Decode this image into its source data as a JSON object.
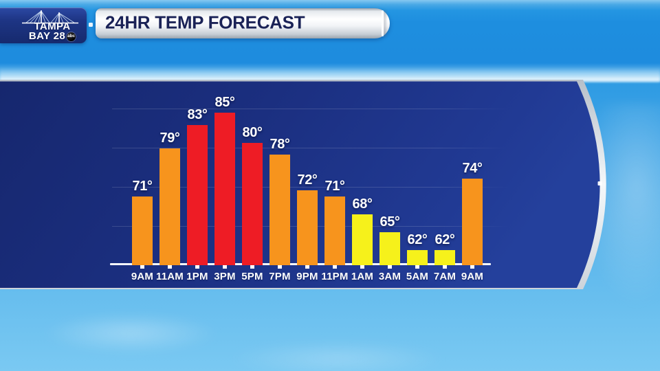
{
  "header": {
    "station": {
      "line1": "TAMPA",
      "line2": "BAY 28",
      "network_badge": "abc"
    },
    "title": "24HR TEMP FORECAST"
  },
  "chart_data": {
    "type": "bar",
    "title": "24HR TEMP FORECAST",
    "unit": "°F",
    "categories": [
      "9AM",
      "11AM",
      "1PM",
      "3PM",
      "5PM",
      "7PM",
      "9PM",
      "11PM",
      "1AM",
      "3AM",
      "5AM",
      "7AM",
      "9AM"
    ],
    "values": [
      71,
      79,
      83,
      85,
      80,
      78,
      72,
      71,
      68,
      65,
      62,
      62,
      74
    ],
    "value_suffix": "°",
    "bar_colors": [
      "orange",
      "orange",
      "red",
      "red",
      "red",
      "orange",
      "orange",
      "orange",
      "yellow",
      "yellow",
      "yellow",
      "yellow",
      "orange"
    ],
    "palette": {
      "red": "#EE1C25",
      "orange": "#F7941D",
      "yellow": "#F6F11B"
    },
    "panel_background": "#1B2F82",
    "ylim": [
      60,
      88
    ],
    "gridlines": true,
    "legend": false,
    "x_axis_note": "time of day in 2-hour steps"
  }
}
